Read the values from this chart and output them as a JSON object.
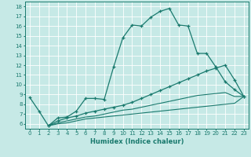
{
  "xlabel": "Humidex (Indice chaleur)",
  "xlim": [
    -0.5,
    23.5
  ],
  "ylim": [
    5.5,
    18.5
  ],
  "xticks": [
    0,
    1,
    2,
    3,
    4,
    5,
    6,
    7,
    8,
    9,
    10,
    11,
    12,
    13,
    14,
    15,
    16,
    17,
    18,
    19,
    20,
    21,
    22,
    23
  ],
  "yticks": [
    6,
    7,
    8,
    9,
    10,
    11,
    12,
    13,
    14,
    15,
    16,
    17,
    18
  ],
  "bg_color": "#c6e9e6",
  "grid_color": "#ffffff",
  "line_color": "#1a7a6e",
  "curves": [
    {
      "x": [
        0,
        1,
        2,
        3,
        4,
        5,
        6,
        7,
        8,
        9,
        10,
        11,
        12,
        13,
        14,
        15,
        16,
        17,
        18,
        19,
        20,
        21,
        22,
        23
      ],
      "y": [
        8.7,
        7.3,
        5.8,
        6.6,
        6.7,
        7.3,
        8.6,
        8.6,
        8.5,
        11.8,
        14.8,
        16.1,
        16.0,
        16.9,
        17.5,
        17.8,
        16.1,
        16.0,
        13.2,
        13.2,
        11.8,
        10.3,
        9.5,
        8.8
      ],
      "has_markers": true
    },
    {
      "x": [
        2,
        3,
        4,
        5,
        6,
        7,
        8,
        9,
        10,
        11,
        12,
        13,
        14,
        15,
        16,
        17,
        18,
        19,
        20,
        21,
        22,
        23
      ],
      "y": [
        5.8,
        6.3,
        6.6,
        6.8,
        7.1,
        7.3,
        7.5,
        7.7,
        7.9,
        8.2,
        8.6,
        9.0,
        9.4,
        9.8,
        10.2,
        10.6,
        11.0,
        11.4,
        11.7,
        12.0,
        10.5,
        8.8
      ],
      "has_markers": true
    },
    {
      "x": [
        2,
        3,
        4,
        5,
        6,
        7,
        8,
        9,
        10,
        11,
        12,
        13,
        14,
        15,
        16,
        17,
        18,
        19,
        20,
        21,
        22,
        23
      ],
      "y": [
        5.8,
        6.1,
        6.3,
        6.5,
        6.7,
        6.8,
        7.0,
        7.2,
        7.4,
        7.5,
        7.7,
        7.9,
        8.1,
        8.3,
        8.5,
        8.7,
        8.9,
        9.0,
        9.1,
        9.2,
        8.8,
        8.8
      ],
      "has_markers": false
    },
    {
      "x": [
        2,
        3,
        4,
        5,
        6,
        7,
        8,
        9,
        10,
        11,
        12,
        13,
        14,
        15,
        16,
        17,
        18,
        19,
        20,
        21,
        22,
        23
      ],
      "y": [
        5.8,
        6.0,
        6.1,
        6.3,
        6.5,
        6.6,
        6.7,
        6.8,
        6.9,
        7.0,
        7.1,
        7.2,
        7.3,
        7.4,
        7.5,
        7.6,
        7.7,
        7.8,
        7.9,
        8.0,
        8.1,
        8.8
      ],
      "has_markers": false
    }
  ]
}
